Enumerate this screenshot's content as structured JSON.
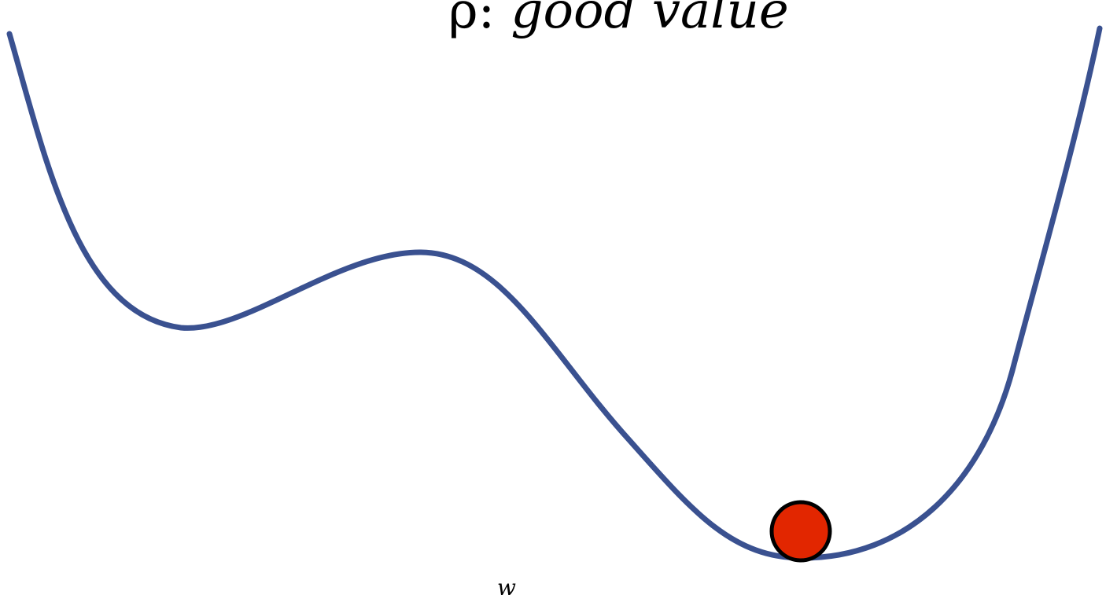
{
  "title": {
    "symbol": "ρ:",
    "text": "good value"
  },
  "axis": {
    "label": "w"
  },
  "colors": {
    "curve": "#3a5190",
    "ball_fill": "#e22600",
    "ball_stroke": "#000000",
    "background": "#ffffff"
  }
}
